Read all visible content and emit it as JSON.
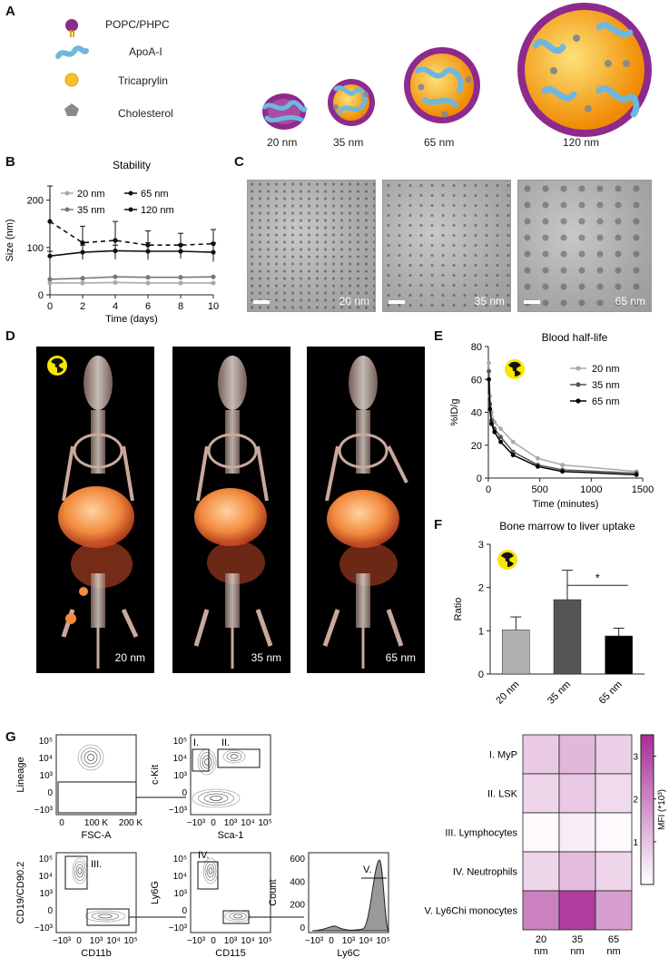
{
  "panels": {
    "A": "A",
    "B": "B",
    "C": "C",
    "D": "D",
    "E": "E",
    "F": "F",
    "G": "G"
  },
  "panel_a": {
    "legend": [
      "POPC/PHPC",
      "ApoA-I",
      "Tricaprylin",
      "Cholesterol"
    ],
    "sizes": [
      "20 nm",
      "35 nm",
      "65 nm",
      "120 nm"
    ],
    "colors": {
      "phospholipid": "#8e2a8c",
      "apoa": "#6fb7dd",
      "core": "#f5a623",
      "cholesterol": "#8a8a8a"
    }
  },
  "chart_data": [
    {
      "id": "B",
      "type": "line",
      "title": "Stability",
      "xlabel": "Time (days)",
      "ylabel": "Size (nm)",
      "x": [
        0,
        2,
        4,
        6,
        8,
        10
      ],
      "xticks": [
        "0",
        "2",
        "4",
        "6",
        "8",
        "10"
      ],
      "yticks": [
        "0",
        "100",
        "200"
      ],
      "xlim": [
        0,
        10
      ],
      "ylim": [
        0,
        230
      ],
      "legend": [
        "20 nm",
        "65 nm",
        "35 nm",
        "120 nm"
      ],
      "series": [
        {
          "name": "20 nm",
          "values": [
            25,
            25,
            26,
            25,
            25,
            25
          ],
          "color": "#aaaaaa"
        },
        {
          "name": "35 nm",
          "values": [
            33,
            35,
            38,
            37,
            37,
            38
          ],
          "color": "#777777"
        },
        {
          "name": "65 nm",
          "values": [
            82,
            90,
            93,
            92,
            92,
            90
          ],
          "err": [
            10,
            15,
            12,
            18,
            15,
            20
          ],
          "color": "#111111"
        },
        {
          "name": "120 nm",
          "values": [
            155,
            110,
            115,
            105,
            105,
            108
          ],
          "err": [
            75,
            35,
            40,
            30,
            25,
            30
          ],
          "color": "#111111",
          "dashed": true
        }
      ]
    },
    {
      "id": "E",
      "type": "line",
      "title": "Blood half-life",
      "xlabel": "Time (minutes)",
      "ylabel": "%ID/g",
      "xticks": [
        "0",
        "500",
        "1000",
        "1500"
      ],
      "yticks": [
        "0",
        "20",
        "40",
        "60",
        "80"
      ],
      "xlim": [
        0,
        1500
      ],
      "ylim": [
        0,
        80
      ],
      "legend": [
        "20 nm",
        "35 nm",
        "65 nm"
      ],
      "series": [
        {
          "name": "20 nm",
          "x": [
            5,
            15,
            30,
            60,
            120,
            240,
            480,
            720,
            1440
          ],
          "values": [
            70,
            50,
            40,
            34,
            30,
            22,
            12,
            8,
            4
          ],
          "color": "#aaaaaa"
        },
        {
          "name": "35 nm",
          "x": [
            5,
            15,
            30,
            60,
            120,
            240,
            480,
            720,
            1440
          ],
          "values": [
            65,
            45,
            35,
            30,
            25,
            16,
            8,
            5,
            3
          ],
          "color": "#555555"
        },
        {
          "name": "65 nm",
          "x": [
            5,
            15,
            30,
            60,
            120,
            240,
            480,
            720,
            1440
          ],
          "values": [
            60,
            42,
            33,
            28,
            22,
            14,
            7,
            4,
            2
          ],
          "color": "#000000"
        }
      ]
    },
    {
      "id": "F",
      "type": "bar",
      "title": "Bone marrow to liver uptake",
      "ylabel": "Ratio",
      "categories": [
        "20 nm",
        "35 nm",
        "65 nm"
      ],
      "values": [
        1.02,
        1.72,
        0.88
      ],
      "err": [
        0.3,
        0.68,
        0.18
      ],
      "yticks": [
        "0",
        "1",
        "2",
        "3"
      ],
      "ylim": [
        0,
        3
      ],
      "colors": [
        "#b0b0b0",
        "#555555",
        "#000000"
      ],
      "significance": "*"
    },
    {
      "id": "G-heatmap",
      "type": "heatmap",
      "rows": [
        "I. MyP",
        "II. LSK",
        "III. Lymphocytes",
        "IV. Neutrophils",
        "V. Ly6Chi monocytes"
      ],
      "cols": [
        "20 nm",
        "35 nm",
        "65 nm"
      ],
      "values": [
        [
          0.9,
          1.2,
          0.8
        ],
        [
          0.7,
          0.9,
          0.6
        ],
        [
          0.1,
          0.3,
          0.1
        ],
        [
          0.7,
          1.1,
          0.7
        ],
        [
          2.1,
          3.2,
          1.6
        ]
      ],
      "colorbar_label": "MFI (*10³)",
      "colorbar_ticks": [
        "1",
        "2",
        "3"
      ],
      "range": [
        0.0,
        3.5
      ]
    }
  ],
  "panel_c": {
    "labels": [
      "20 nm",
      "35 nm",
      "65 nm"
    ]
  },
  "panel_d": {
    "labels": [
      "20 nm",
      "35 nm",
      "65 nm"
    ]
  },
  "panel_g": {
    "plots": [
      {
        "ylabel": "Lineage",
        "xlabel": "FSC-A",
        "yticks": [
          "10⁵",
          "10⁴",
          "10³",
          "0",
          "−10³"
        ],
        "xticks": [
          "0",
          "100 K",
          "200 K"
        ]
      },
      {
        "ylabel": "c-Kit",
        "xlabel": "Sca-1",
        "gates": [
          "I.",
          "II."
        ],
        "yticks": [
          "10⁵",
          "10⁴",
          "10³",
          "0",
          "−10³"
        ],
        "xticks": [
          "−10³",
          "0",
          "10³",
          "10⁴",
          "10⁵"
        ]
      },
      {
        "ylabel": "CD19/CD90.2",
        "xlabel": "CD11b",
        "gates": [
          "III."
        ],
        "yticks": [
          "10⁵",
          "10⁴",
          "10³",
          "0",
          "−10³"
        ],
        "xticks": [
          "−10³",
          "0",
          "10³",
          "10⁴",
          "10⁵"
        ]
      },
      {
        "ylabel": "Ly6G",
        "xlabel": "CD115",
        "gates": [
          "IV."
        ],
        "yticks": [
          "10⁵",
          "10⁴",
          "10³",
          "0",
          "−10³"
        ],
        "xticks": [
          "−10³",
          "0",
          "10³",
          "10⁴",
          "10⁵"
        ]
      },
      {
        "ylabel": "Count",
        "xlabel": "Ly6C",
        "gates": [
          "V."
        ],
        "yticks": [
          "600",
          "400",
          "200",
          "0"
        ],
        "xticks": [
          "−10³",
          "0",
          "10³",
          "10⁴",
          "10⁵"
        ]
      }
    ]
  }
}
